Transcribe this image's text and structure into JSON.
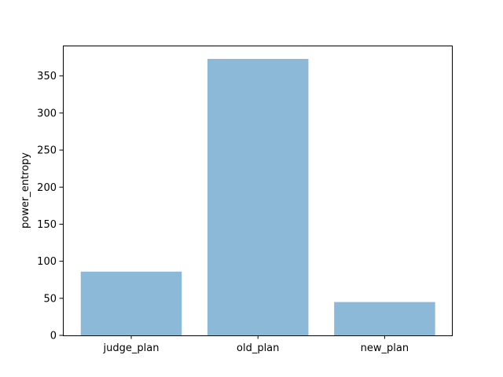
{
  "chart_data": {
    "type": "bar",
    "categories": [
      "judge_plan",
      "old_plan",
      "new_plan"
    ],
    "values": [
      86,
      373,
      45
    ],
    "xlabel": "",
    "ylabel": "power_entropy",
    "ylim": [
      0,
      391
    ],
    "yticks": [
      0,
      50,
      100,
      150,
      200,
      250,
      300,
      350
    ],
    "grid": false,
    "bar_color": "#8db9d9",
    "axis_color": "#000000"
  }
}
